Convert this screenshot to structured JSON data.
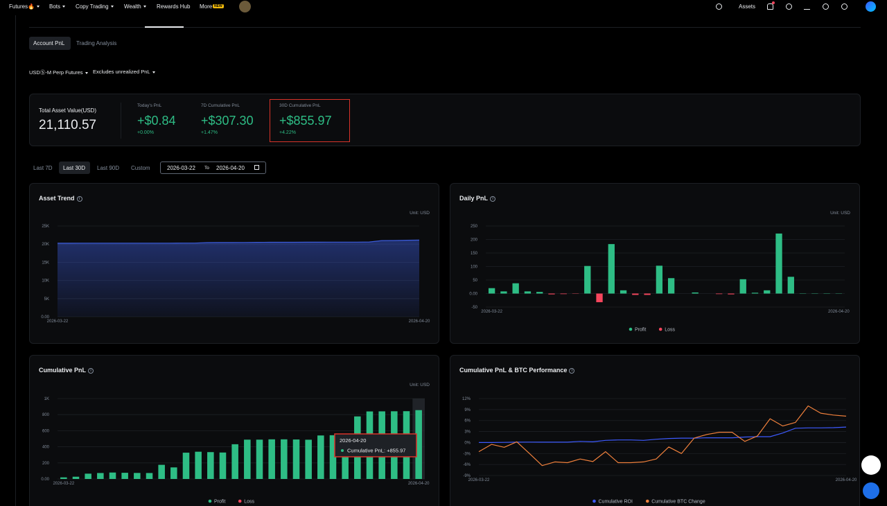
{
  "nav": {
    "items": [
      "Futures🔥",
      "Bots",
      "Copy Trading",
      "Wealth",
      "Rewards Hub",
      "More"
    ],
    "badge": "NEW",
    "assets": "Assets"
  },
  "tabs": [
    "Account PnL",
    "Trading Analysis"
  ],
  "filters": [
    "USDⓈ-M Perp Futures",
    "Excludes unrealized PnL"
  ],
  "summary": {
    "total_label": "Total Asset Value(USD)",
    "total_value": "21,110.57",
    "stats": [
      {
        "label": "Today's PnL",
        "value": "+$0.84",
        "change": "+0.00%"
      },
      {
        "label": "7D Cumulative PnL",
        "value": "+$307.30",
        "change": "+1.47%"
      },
      {
        "label": "30D Cumulative PnL",
        "value": "+$855.97",
        "change": "+4.22%"
      }
    ]
  },
  "periods": [
    "Last 7D",
    "Last 30D",
    "Last 90D",
    "Custom"
  ],
  "date_range": {
    "start": "2026-03-22",
    "separator": "To",
    "end": "2026-04-20"
  },
  "chart_data": [
    {
      "type": "area",
      "title": "Asset Trend",
      "unit": "Unit: USD",
      "categories": [
        "2026-03-22",
        null,
        null,
        null,
        null,
        null,
        null,
        null,
        null,
        null,
        null,
        null,
        null,
        null,
        null,
        null,
        null,
        null,
        null,
        null,
        null,
        null,
        null,
        null,
        null,
        null,
        null,
        null,
        null,
        "2026-04-20"
      ],
      "values": [
        20255,
        20256,
        20258,
        20260,
        20261,
        20262,
        20262,
        20263,
        20263,
        20264,
        20290,
        20290,
        20420,
        20430,
        20440,
        20450,
        20500,
        20510,
        20515,
        20515,
        20530,
        20540,
        20545,
        20550,
        20560,
        20600,
        20980,
        21000,
        21060,
        21110.57
      ],
      "color": "#3b5bdb",
      "ylim": [
        0,
        25000
      ],
      "yticks": [
        {
          "value": 0,
          "label": "0.00"
        },
        {
          "value": 5000,
          "label": "5K"
        },
        {
          "value": 10000,
          "label": "10K"
        },
        {
          "value": 15000,
          "label": "15K"
        },
        {
          "value": 20000,
          "label": "20K"
        },
        {
          "value": 25000,
          "label": "25K"
        }
      ],
      "grid": true
    },
    {
      "type": "bar",
      "title": "Daily PnL",
      "unit": "Unit: USD",
      "categories": [
        "2026-03-22",
        null,
        null,
        null,
        null,
        null,
        null,
        null,
        null,
        null,
        null,
        null,
        null,
        null,
        null,
        null,
        null,
        null,
        null,
        null,
        null,
        null,
        null,
        null,
        null,
        null,
        null,
        null,
        null,
        "2026-04-20"
      ],
      "series": [
        {
          "name": "Profit",
          "color": "#2ebd85",
          "values": [
            20,
            8,
            38,
            8,
            6,
            null,
            null,
            null,
            102,
            null,
            183,
            12,
            null,
            null,
            103,
            57,
            0,
            4,
            0,
            null,
            null,
            53,
            3,
            12,
            222,
            62,
            1,
            1,
            1,
            0.84
          ]
        },
        {
          "name": "Loss",
          "color": "#f6465d",
          "values": [
            null,
            null,
            null,
            null,
            null,
            -3,
            -2,
            -1,
            null,
            -32,
            null,
            null,
            -5,
            -5,
            null,
            null,
            null,
            null,
            null,
            -2,
            -3,
            null,
            null,
            null,
            null,
            null,
            null,
            null,
            null,
            null
          ]
        }
      ],
      "ylim": [
        -50,
        250
      ],
      "yticks": [
        -50,
        {
          "value": 0,
          "label": "0.00"
        },
        50,
        100,
        150,
        200,
        250
      ],
      "grid": true
    },
    {
      "type": "bar",
      "title": "Cumulative PnL",
      "unit": "Unit: USD",
      "categories": [
        "2026-03-22",
        null,
        null,
        null,
        null,
        null,
        null,
        null,
        null,
        null,
        null,
        null,
        null,
        null,
        null,
        null,
        null,
        null,
        null,
        null,
        null,
        null,
        null,
        null,
        null,
        null,
        null,
        null,
        null,
        "2026-04-20"
      ],
      "series": [
        {
          "name": "Profit",
          "color": "#2ebd85",
          "values": [
            20,
            28,
            66,
            74,
            80,
            77,
            75,
            74,
            176,
            144,
            327,
            339,
            334,
            329,
            432,
            489,
            489,
            493,
            493,
            491,
            488,
            541,
            544,
            556,
            778,
            840,
            841,
            842,
            843,
            855.97
          ]
        },
        {
          "name": "Loss",
          "color": "#f6465d",
          "values": [
            null,
            null,
            null,
            null,
            null,
            null,
            null,
            null,
            null,
            null,
            null,
            null,
            null,
            null,
            null,
            null,
            null,
            null,
            null,
            null,
            null,
            null,
            null,
            null,
            null,
            null,
            null,
            null,
            null,
            null
          ]
        }
      ],
      "ylim": [
        0,
        1000
      ],
      "yticks": [
        {
          "value": 0,
          "label": "0.00"
        },
        200,
        400,
        600,
        800,
        {
          "value": 1000,
          "label": "1K"
        }
      ],
      "grid": true,
      "tooltip": {
        "title": "2026-04-20",
        "text": "Cumulative PnL: +855.97"
      }
    },
    {
      "type": "line",
      "title": "Cumulative PnL & BTC Performance",
      "categories": [
        "2026-03-22",
        null,
        null,
        null,
        null,
        null,
        null,
        null,
        null,
        null,
        null,
        null,
        null,
        null,
        null,
        null,
        null,
        null,
        null,
        null,
        null,
        null,
        null,
        null,
        null,
        null,
        null,
        null,
        null,
        "2026-04-20"
      ],
      "series": [
        {
          "name": "Cumulative ROI",
          "color": "#3d5afe",
          "values": [
            0,
            0,
            0.05,
            0.1,
            0.12,
            0.1,
            0.1,
            0.1,
            0.3,
            0.2,
            0.6,
            0.7,
            0.7,
            0.6,
            0.9,
            1.1,
            1.2,
            1.2,
            1.3,
            1.3,
            1.3,
            1.5,
            1.6,
            1.6,
            2.6,
            3.9,
            4.0,
            4.0,
            4.05,
            4.22
          ]
        },
        {
          "name": "Cumulative BTC Change",
          "color": "#f0803c",
          "values": [
            -2.5,
            -0.5,
            -1.3,
            0.2,
            -3,
            -6.3,
            -5.3,
            -5.5,
            -4.5,
            -5.2,
            -2.5,
            -5.5,
            -5.5,
            -5.3,
            -4.5,
            -1.2,
            -3,
            1.2,
            2.2,
            2.8,
            2.8,
            0.3,
            1.8,
            6.5,
            4.5,
            5.5,
            10,
            8,
            7.5,
            7.2
          ]
        }
      ],
      "ylim": [
        -9,
        12
      ],
      "yticks": [
        {
          "value": -9,
          "label": "-9%"
        },
        {
          "value": -6,
          "label": "-6%"
        },
        {
          "value": -3,
          "label": "-3%"
        },
        {
          "value": 0,
          "label": "0%"
        },
        {
          "value": 3,
          "label": "3%"
        },
        {
          "value": 6,
          "label": "6%"
        },
        {
          "value": 9,
          "label": "9%"
        },
        {
          "value": 12,
          "label": "12%"
        }
      ],
      "grid": true
    }
  ]
}
